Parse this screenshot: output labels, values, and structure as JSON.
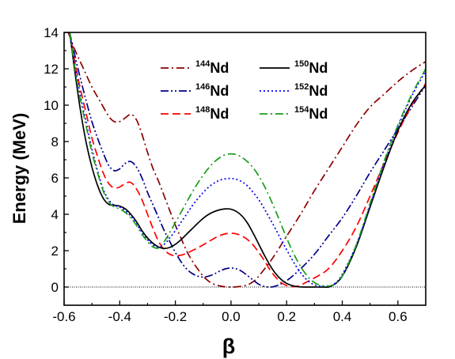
{
  "chart_data": {
    "type": "line",
    "title": "",
    "xlabel": "β",
    "ylabel": "Energy (MeV)",
    "xlim": [
      -0.6,
      0.7
    ],
    "ylim": [
      -1,
      14
    ],
    "xticks": [
      -0.6,
      -0.4,
      -0.2,
      0.0,
      0.2,
      0.4,
      0.6
    ],
    "xtick_labels": [
      "-0.6",
      "-0.4",
      "-0.2",
      "0.0",
      "0.2",
      "0.4",
      "0.6"
    ],
    "yticks": [
      0,
      2,
      4,
      6,
      8,
      10,
      12,
      14
    ],
    "ytick_labels": [
      "0",
      "2",
      "4",
      "6",
      "8",
      "10",
      "12",
      "14"
    ],
    "grid": false,
    "legend_position": "top-center",
    "reference_line": {
      "y": 0,
      "style": "dotted",
      "color": "#000000"
    },
    "series": [
      {
        "name": "Nd",
        "mass": "144",
        "color": "#8b0000",
        "dash": "dashdot",
        "x": [
          -0.585,
          -0.56,
          -0.53,
          -0.5,
          -0.47,
          -0.44,
          -0.42,
          -0.4,
          -0.38,
          -0.36,
          -0.34,
          -0.32,
          -0.3,
          -0.28,
          -0.26,
          -0.24,
          -0.22,
          -0.2,
          -0.18,
          -0.16,
          -0.14,
          -0.12,
          -0.1,
          -0.08,
          -0.06,
          -0.04,
          -0.02,
          0.0,
          0.02,
          0.04,
          0.06,
          0.08,
          0.1,
          0.15,
          0.2,
          0.25,
          0.3,
          0.35,
          0.4,
          0.45,
          0.5,
          0.55,
          0.6,
          0.65,
          0.7
        ],
        "y": [
          14.0,
          13.0,
          12.0,
          11.0,
          10.2,
          9.4,
          9.1,
          9.1,
          9.3,
          9.5,
          9.2,
          8.4,
          7.4,
          6.5,
          5.8,
          5.0,
          4.2,
          3.4,
          2.7,
          2.0,
          1.45,
          1.0,
          0.6,
          0.32,
          0.15,
          0.06,
          0.01,
          0.0,
          0.01,
          0.05,
          0.12,
          0.3,
          0.6,
          1.6,
          2.8,
          4.0,
          5.3,
          6.5,
          7.7,
          8.9,
          9.9,
          10.6,
          11.3,
          11.9,
          12.4
        ]
      },
      {
        "name": "Nd",
        "mass": "146",
        "color": "#00008b",
        "dash": "dashdotdot",
        "x": [
          -0.58,
          -0.55,
          -0.52,
          -0.5,
          -0.48,
          -0.46,
          -0.44,
          -0.42,
          -0.4,
          -0.38,
          -0.36,
          -0.34,
          -0.32,
          -0.3,
          -0.28,
          -0.26,
          -0.24,
          -0.22,
          -0.2,
          -0.18,
          -0.16,
          -0.14,
          -0.12,
          -0.1,
          -0.08,
          -0.06,
          -0.04,
          -0.02,
          0.0,
          0.02,
          0.04,
          0.06,
          0.08,
          0.1,
          0.12,
          0.14,
          0.16,
          0.2,
          0.25,
          0.3,
          0.35,
          0.4,
          0.45,
          0.5,
          0.55,
          0.6,
          0.65,
          0.7
        ],
        "y": [
          14.0,
          12.0,
          10.2,
          9.1,
          8.2,
          7.4,
          6.7,
          6.4,
          6.5,
          6.8,
          6.9,
          6.6,
          6.0,
          5.2,
          4.5,
          3.8,
          3.1,
          2.5,
          1.9,
          1.4,
          1.0,
          0.75,
          0.6,
          0.55,
          0.6,
          0.72,
          0.88,
          1.0,
          1.05,
          1.0,
          0.85,
          0.62,
          0.38,
          0.15,
          0.03,
          0.0,
          0.05,
          0.35,
          1.0,
          1.8,
          2.8,
          3.8,
          5.0,
          6.3,
          7.5,
          8.7,
          9.9,
          11.1
        ]
      },
      {
        "name": "Nd",
        "mass": "148",
        "color": "#ff0000",
        "dash": "dashed",
        "x": [
          -0.58,
          -0.55,
          -0.52,
          -0.5,
          -0.48,
          -0.46,
          -0.44,
          -0.42,
          -0.4,
          -0.38,
          -0.36,
          -0.34,
          -0.32,
          -0.3,
          -0.28,
          -0.26,
          -0.24,
          -0.22,
          -0.2,
          -0.18,
          -0.16,
          -0.14,
          -0.12,
          -0.1,
          -0.08,
          -0.06,
          -0.04,
          -0.02,
          0.0,
          0.02,
          0.04,
          0.06,
          0.08,
          0.1,
          0.12,
          0.14,
          0.16,
          0.18,
          0.2,
          0.22,
          0.24,
          0.26,
          0.3,
          0.35,
          0.4,
          0.45,
          0.5,
          0.55,
          0.6,
          0.65,
          0.7
        ],
        "y": [
          14.0,
          11.5,
          9.5,
          8.2,
          7.2,
          6.3,
          5.7,
          5.45,
          5.5,
          5.7,
          5.75,
          5.4,
          4.8,
          4.0,
          3.2,
          2.5,
          2.05,
          1.8,
          1.72,
          1.75,
          1.85,
          2.0,
          2.15,
          2.32,
          2.5,
          2.68,
          2.83,
          2.93,
          2.96,
          2.92,
          2.8,
          2.6,
          2.3,
          1.9,
          1.45,
          0.95,
          0.55,
          0.25,
          0.08,
          0.02,
          0.05,
          0.18,
          0.5,
          1.0,
          2.0,
          3.3,
          5.0,
          6.8,
          8.5,
          10.0,
          11.2
        ]
      },
      {
        "name": "Nd",
        "mass": "150",
        "color": "#000000",
        "dash": "solid",
        "x": [
          -0.58,
          -0.56,
          -0.54,
          -0.52,
          -0.5,
          -0.48,
          -0.46,
          -0.44,
          -0.42,
          -0.4,
          -0.38,
          -0.36,
          -0.34,
          -0.32,
          -0.3,
          -0.28,
          -0.26,
          -0.24,
          -0.22,
          -0.2,
          -0.18,
          -0.16,
          -0.14,
          -0.12,
          -0.1,
          -0.08,
          -0.06,
          -0.04,
          -0.02,
          0.0,
          0.02,
          0.04,
          0.06,
          0.08,
          0.1,
          0.12,
          0.14,
          0.16,
          0.18,
          0.2,
          0.22,
          0.24,
          0.26,
          0.28,
          0.3,
          0.33,
          0.36,
          0.4,
          0.45,
          0.5,
          0.55,
          0.6,
          0.65,
          0.7
        ],
        "y": [
          14.0,
          11.7,
          9.6,
          7.9,
          6.6,
          5.6,
          4.9,
          4.55,
          4.5,
          4.45,
          4.3,
          4.0,
          3.6,
          3.1,
          2.7,
          2.4,
          2.2,
          2.12,
          2.18,
          2.35,
          2.6,
          2.9,
          3.2,
          3.5,
          3.78,
          4.0,
          4.15,
          4.25,
          4.3,
          4.28,
          4.15,
          3.9,
          3.5,
          2.95,
          2.35,
          1.75,
          1.2,
          0.75,
          0.42,
          0.2,
          0.08,
          0.02,
          0.0,
          0.0,
          0.0,
          0.0,
          0.05,
          0.6,
          2.2,
          4.4,
          6.6,
          8.6,
          10.1,
          11.1
        ]
      },
      {
        "name": "Nd",
        "mass": "152",
        "color": "#0000ff",
        "dash": "dotted",
        "x": [
          -0.58,
          -0.55,
          -0.52,
          -0.5,
          -0.48,
          -0.46,
          -0.44,
          -0.42,
          -0.4,
          -0.38,
          -0.36,
          -0.34,
          -0.32,
          -0.3,
          -0.28,
          -0.26,
          -0.24,
          -0.22,
          -0.2,
          -0.18,
          -0.16,
          -0.14,
          -0.12,
          -0.1,
          -0.08,
          -0.06,
          -0.04,
          -0.02,
          0.0,
          0.02,
          0.04,
          0.06,
          0.08,
          0.1,
          0.12,
          0.14,
          0.16,
          0.18,
          0.2,
          0.22,
          0.24,
          0.26,
          0.28,
          0.3,
          0.32,
          0.34,
          0.37,
          0.4,
          0.45,
          0.5,
          0.55,
          0.6,
          0.65,
          0.7
        ],
        "y": [
          14.0,
          11.2,
          9.0,
          7.6,
          6.4,
          5.4,
          4.8,
          4.5,
          4.4,
          4.2,
          3.9,
          3.5,
          3.0,
          2.6,
          2.3,
          2.2,
          2.35,
          2.7,
          3.1,
          3.55,
          4.0,
          4.45,
          4.85,
          5.2,
          5.5,
          5.72,
          5.88,
          5.95,
          5.97,
          5.92,
          5.78,
          5.55,
          5.2,
          4.8,
          4.3,
          3.75,
          3.2,
          2.6,
          2.05,
          1.5,
          1.0,
          0.6,
          0.3,
          0.12,
          0.05,
          0.05,
          0.15,
          0.7,
          2.3,
          4.5,
          6.8,
          8.8,
          10.5,
          11.9
        ]
      },
      {
        "name": "Nd",
        "mass": "154",
        "color": "#1a9c1a",
        "dash": "dashdot",
        "x": [
          -0.58,
          -0.55,
          -0.52,
          -0.5,
          -0.48,
          -0.46,
          -0.44,
          -0.42,
          -0.4,
          -0.38,
          -0.36,
          -0.34,
          -0.32,
          -0.3,
          -0.28,
          -0.26,
          -0.24,
          -0.22,
          -0.2,
          -0.18,
          -0.16,
          -0.14,
          -0.12,
          -0.1,
          -0.08,
          -0.06,
          -0.04,
          -0.02,
          0.0,
          0.02,
          0.04,
          0.06,
          0.08,
          0.1,
          0.12,
          0.14,
          0.16,
          0.18,
          0.2,
          0.22,
          0.24,
          0.26,
          0.28,
          0.3,
          0.32,
          0.34,
          0.36,
          0.38,
          0.4,
          0.45,
          0.5,
          0.55,
          0.6,
          0.65,
          0.7
        ],
        "y": [
          14.0,
          11.0,
          8.8,
          7.4,
          6.3,
          5.3,
          4.7,
          4.4,
          4.3,
          4.1,
          3.8,
          3.4,
          2.9,
          2.5,
          2.2,
          2.15,
          2.5,
          3.0,
          3.55,
          4.1,
          4.65,
          5.2,
          5.7,
          6.15,
          6.55,
          6.88,
          7.12,
          7.28,
          7.32,
          7.28,
          7.12,
          6.88,
          6.55,
          6.1,
          5.55,
          4.9,
          4.2,
          3.45,
          2.7,
          2.0,
          1.4,
          0.9,
          0.5,
          0.25,
          0.1,
          0.05,
          0.08,
          0.25,
          0.6,
          2.3,
          4.6,
          6.9,
          8.9,
          10.6,
          12.0
        ]
      }
    ]
  }
}
